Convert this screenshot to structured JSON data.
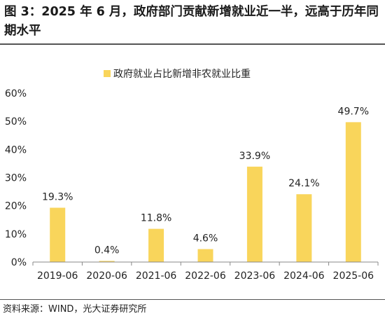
{
  "title": "图 3：2025 年 6 月，政府部门贡献新增就业近一半，远高于历年同期水平",
  "source": "资料来源：WIND，光大证券研究所",
  "chart_data": {
    "type": "bar",
    "title": "",
    "xlabel": "",
    "ylabel": "",
    "categories": [
      "2019-06",
      "2020-06",
      "2021-06",
      "2022-06",
      "2023-06",
      "2024-06",
      "2025-06"
    ],
    "series": [
      {
        "name": "政府就业占比新增非农就业比重",
        "values": [
          19.3,
          0.4,
          11.8,
          4.6,
          33.9,
          24.1,
          49.7
        ],
        "labels": [
          "19.3%",
          "0.4%",
          "11.8%",
          "4.6%",
          "33.9%",
          "24.1%",
          "49.7%"
        ]
      }
    ],
    "ylim": [
      0,
      60
    ],
    "yticks": [
      "0%",
      "10%",
      "20%",
      "30%",
      "40%",
      "50%",
      "60%"
    ],
    "grid": false,
    "legend_position": "top-center",
    "bar_color": "#F9D55B"
  }
}
